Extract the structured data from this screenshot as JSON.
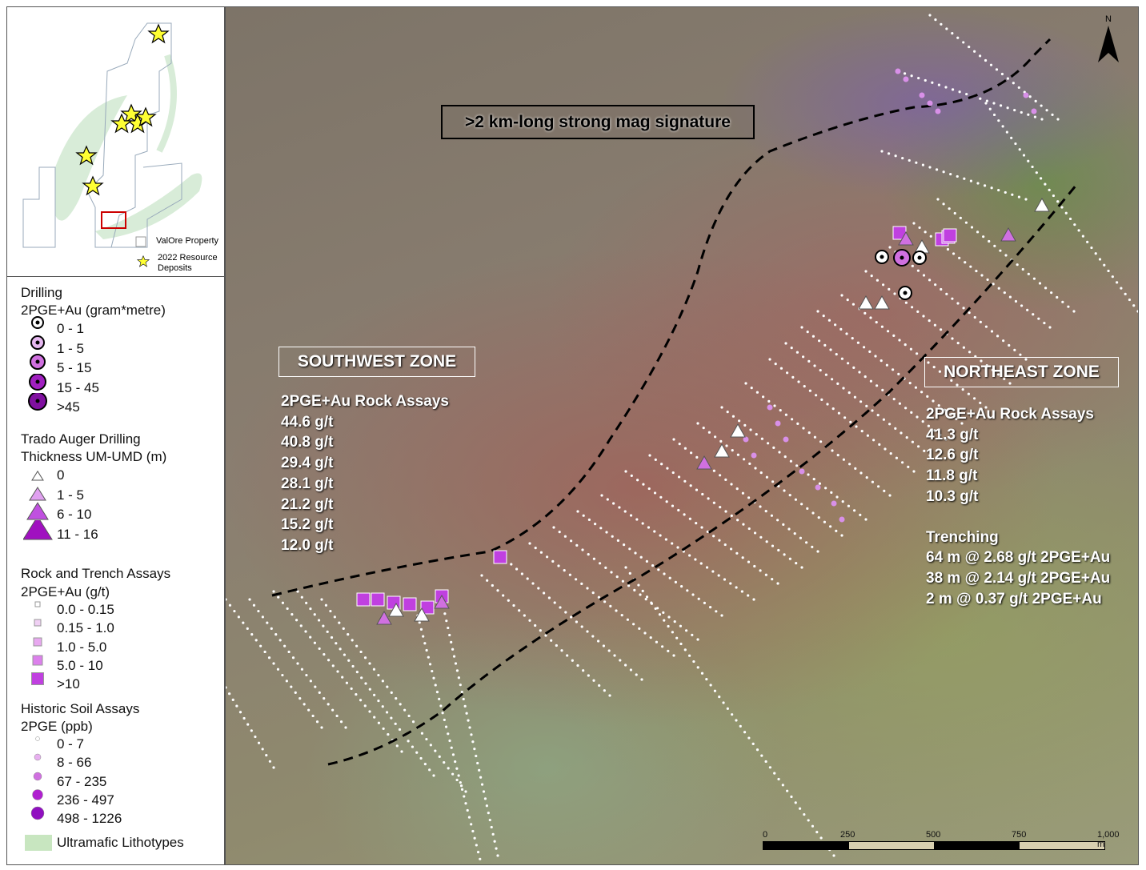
{
  "inset": {
    "legend": [
      {
        "label": "ValOre Property",
        "icon": "square-outline"
      },
      {
        "label": "2022 Resource Deposits",
        "icon": "star-yellow"
      }
    ]
  },
  "legend": {
    "drilling": {
      "title": "Drilling",
      "subtitle": "2PGE+Au (gram*metre)",
      "items": [
        "0 - 1",
        "1 - 5",
        "5 - 15",
        "15 - 45",
        ">45"
      ]
    },
    "auger": {
      "title": "Trado Auger Drilling",
      "subtitle": "Thickness UM-UMD (m)",
      "items": [
        "0",
        "1 - 5",
        "6 - 10",
        "11 - 16"
      ]
    },
    "rock": {
      "title": "Rock and Trench Assays",
      "subtitle": "2PGE+Au (g/t)",
      "items": [
        "0.0 - 0.15",
        "0.15 - 1.0",
        "1.0 - 5.0",
        "5.0 - 10",
        ">10"
      ]
    },
    "soil": {
      "title": "Historic Soil Assays",
      "subtitle": "2PGE (ppb)",
      "items": [
        "0 - 7",
        "8 - 66",
        "67 - 235",
        "236 - 497",
        "498 - 1226"
      ]
    },
    "ultramafic": "Ultramafic Lithotypes"
  },
  "map": {
    "callout": ">2 km-long strong mag signature",
    "north": "N",
    "southwest": {
      "title": "SOUTHWEST ZONE",
      "assay_title": "2PGE+Au Rock Assays",
      "assays": [
        "44.6 g/t",
        "40.8 g/t",
        "29.4 g/t",
        "28.1 g/t",
        "21.2 g/t",
        "15.2 g/t",
        "12.0 g/t"
      ]
    },
    "northeast": {
      "title": "NORTHEAST ZONE",
      "assay_title": "2PGE+Au Rock Assays",
      "assays": [
        "41.3 g/t",
        "12.6 g/t",
        "11.8 g/t",
        "10.3 g/t"
      ],
      "trench_title": "Trenching",
      "trenches": [
        "64 m @ 2.68 g/t 2PGE+Au",
        "38 m @ 2.14 g/t 2PGE+Au",
        "2 m @ 0.37 g/t 2PGE+Au"
      ]
    },
    "scale": {
      "ticks": [
        "0",
        "250",
        "500",
        "750",
        "1,000 m"
      ]
    }
  },
  "colors": {
    "purple": "#a020c0",
    "lightpurple": "#d890e8",
    "ultramafic": "#c8e6c0",
    "star": "#ffff33",
    "boundary": "#000000"
  }
}
